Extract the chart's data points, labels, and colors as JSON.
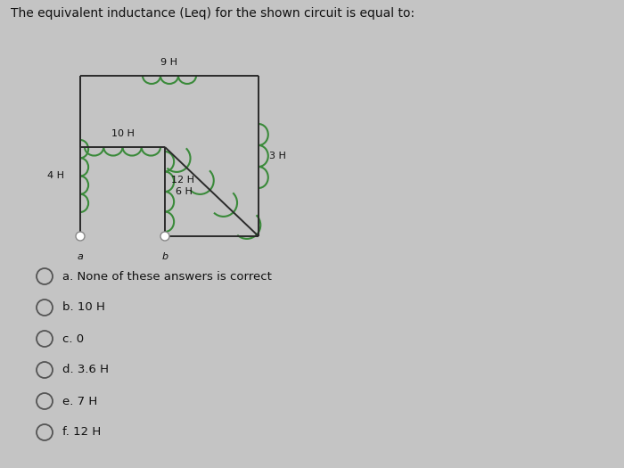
{
  "title": "The equivalent inductance (Leq) for the shown circuit is equal to:",
  "bg_color": "#c4c4c4",
  "circuit_color": "#3a8a3a",
  "wire_color": "#2a2a2a",
  "text_color": "#111111",
  "choices": [
    "a. None of these answers is correct",
    "b. 10 H",
    "c. 0",
    "d. 3.6 H",
    "e. 7 H",
    "f. 12 H"
  ]
}
